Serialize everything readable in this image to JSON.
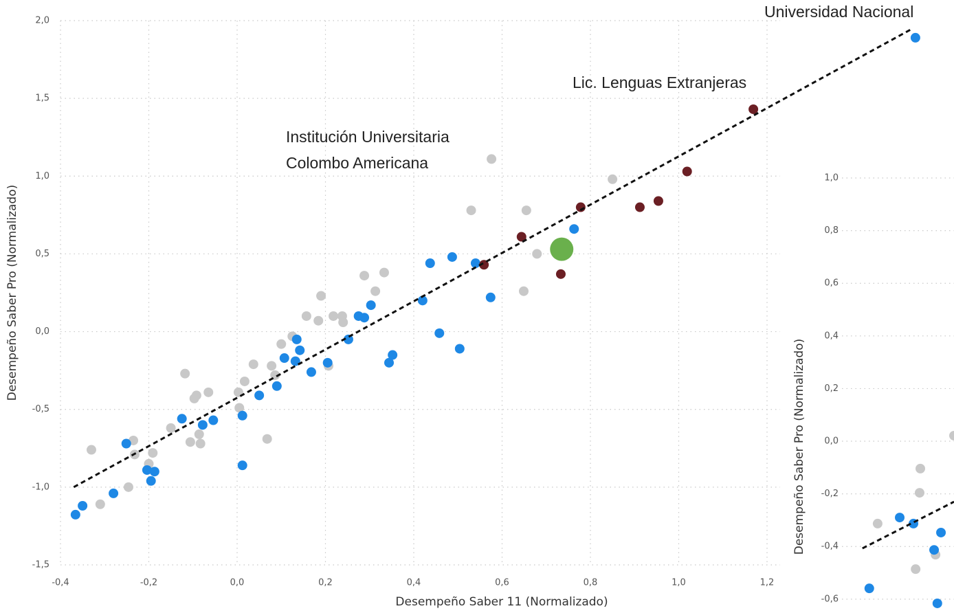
{
  "chart_data": [
    {
      "type": "scatter",
      "x_label": "Desempeño Saber 11 (Normalizado)",
      "y_label": "Desempeño Saber Pro (Normalizado)",
      "annotations": [
        "Universidad Nacional",
        "Lic. Lenguas Extranjeras",
        "Institución Universitaria",
        "Colombo Americana"
      ],
      "xlim": [
        -0.4,
        1.6
      ],
      "ylim": [
        -1.5,
        2.0
      ],
      "xticks": [
        {
          "value": -0.4,
          "label": "-0,4"
        },
        {
          "value": -0.2,
          "label": "-0,2"
        },
        {
          "value": 0,
          "label": "0,0"
        },
        {
          "value": 0.2,
          "label": "0,2"
        },
        {
          "value": 0.4,
          "label": "0,4"
        },
        {
          "value": 0.6,
          "label": "0,6"
        },
        {
          "value": 0.8,
          "label": "0,8"
        },
        {
          "value": 1.0,
          "label": "1,0"
        },
        {
          "value": 1.2,
          "label": "1,2"
        }
      ],
      "yticks": [
        {
          "value": -1.5,
          "label": "-1,5"
        },
        {
          "value": -1.0,
          "label": "-1,0"
        },
        {
          "value": -0.5,
          "label": "-0,5"
        },
        {
          "value": 0,
          "label": "0,0"
        },
        {
          "value": 0.5,
          "label": "0,5"
        },
        {
          "value": 1.0,
          "label": "1,0"
        },
        {
          "value": 1.5,
          "label": "1,5"
        },
        {
          "value": 2.0,
          "label": "2,0"
        }
      ],
      "grid": true,
      "series": [
        {
          "color": "#c8c8c8",
          "size": 7,
          "x": [
            -0.33,
            -0.31,
            -0.246,
            -0.235,
            -0.232,
            -0.191,
            -0.2,
            -0.15,
            -0.118,
            -0.106,
            -0.097,
            -0.092,
            -0.083,
            -0.086,
            -0.065,
            0.003,
            0.005,
            0.017,
            0.037,
            0.068,
            0.078,
            0.086,
            0.1,
            0.125,
            0.157,
            0.184,
            0.19,
            0.207,
            0.218,
            0.24,
            0.238,
            0.288,
            0.313,
            0.333,
            0.53,
            0.576,
            0.649,
            0.655,
            0.679,
            0.85
          ],
          "y": [
            -0.76,
            -1.11,
            -1.0,
            -0.7,
            -0.79,
            -0.78,
            -0.85,
            -0.62,
            -0.27,
            -0.71,
            -0.43,
            -0.41,
            -0.72,
            -0.66,
            -0.39,
            -0.39,
            -0.49,
            -0.32,
            -0.21,
            -0.69,
            -0.22,
            -0.28,
            -0.08,
            -0.03,
            0.1,
            0.07,
            0.23,
            -0.22,
            0.1,
            0.06,
            0.1,
            0.36,
            0.26,
            0.38,
            0.78,
            1.11,
            0.26,
            0.78,
            0.5,
            0.98
          ]
        },
        {
          "color": "#1e88e5",
          "size": 7,
          "x": [
            -0.366,
            -0.35,
            -0.28,
            -0.251,
            -0.204,
            -0.187,
            -0.195,
            -0.125,
            -0.078,
            -0.054,
            0.012,
            0.012,
            0.05,
            0.09,
            0.107,
            0.132,
            0.135,
            0.142,
            0.168,
            0.205,
            0.252,
            0.275,
            0.288,
            0.303,
            0.344,
            0.352,
            0.42,
            0.437,
            0.458,
            0.487,
            0.504,
            0.54,
            0.574,
            0.763,
            1.536
          ],
          "y": [
            -1.177,
            -1.12,
            -1.04,
            -0.72,
            -0.89,
            -0.9,
            -0.96,
            -0.56,
            -0.6,
            -0.57,
            -0.54,
            -0.86,
            -0.41,
            -0.35,
            -0.17,
            -0.19,
            -0.05,
            -0.12,
            -0.26,
            -0.2,
            -0.05,
            0.1,
            0.09,
            0.17,
            -0.2,
            -0.15,
            0.2,
            0.44,
            -0.01,
            0.48,
            -0.11,
            0.44,
            0.22,
            0.66,
            1.89
          ]
        },
        {
          "color": "#6b1f24",
          "size": 7,
          "x": [
            0.559,
            0.644,
            0.733,
            0.778,
            0.912,
            0.954,
            1.019,
            1.169
          ],
          "y": [
            0.43,
            0.61,
            0.37,
            0.8,
            0.8,
            0.84,
            1.03,
            1.43
          ]
        },
        {
          "color": "#6ab04c",
          "size": 17,
          "x": [
            0.735
          ],
          "y": [
            0.53
          ]
        }
      ],
      "trendline": {
        "x": [
          -0.37,
          1.53
        ],
        "y": [
          -1.0,
          1.95
        ]
      }
    },
    {
      "type": "scatter",
      "y_label": "Desempeño Saber Pro (Normalizado)",
      "xlim": [
        -0.45,
        -0.15
      ],
      "ylim": [
        -0.65,
        1.05
      ],
      "yticks": [
        {
          "value": -0.6,
          "label": "-0,6"
        },
        {
          "value": -0.4,
          "label": "-0,4"
        },
        {
          "value": -0.2,
          "label": "-0,2"
        },
        {
          "value": 0,
          "label": "0,0"
        },
        {
          "value": 0.2,
          "label": "0,2"
        },
        {
          "value": 0.4,
          "label": "0,4"
        },
        {
          "value": 0.6,
          "label": "0,6"
        },
        {
          "value": 0.8,
          "label": "0,8"
        },
        {
          "value": 1.0,
          "label": "1,0"
        }
      ],
      "grid": true,
      "series": [
        {
          "color": "#c8c8c8",
          "size": 7,
          "x": [
            -0.361,
            -0.243,
            -0.245,
            -0.256,
            -0.201,
            -0.15
          ],
          "y": [
            -0.313,
            -0.104,
            -0.196,
            -0.486,
            -0.431,
            0.021
          ]
        },
        {
          "color": "#1e88e5",
          "size": 7,
          "x": [
            -0.384,
            -0.3,
            -0.262,
            -0.186,
            -0.205,
            -0.196
          ],
          "y": [
            -0.559,
            -0.29,
            -0.313,
            -0.347,
            -0.413,
            -0.616
          ]
        }
      ],
      "trendline": {
        "x": [
          -0.403,
          -0.15
        ],
        "y": [
          -0.407,
          -0.23
        ]
      }
    }
  ]
}
